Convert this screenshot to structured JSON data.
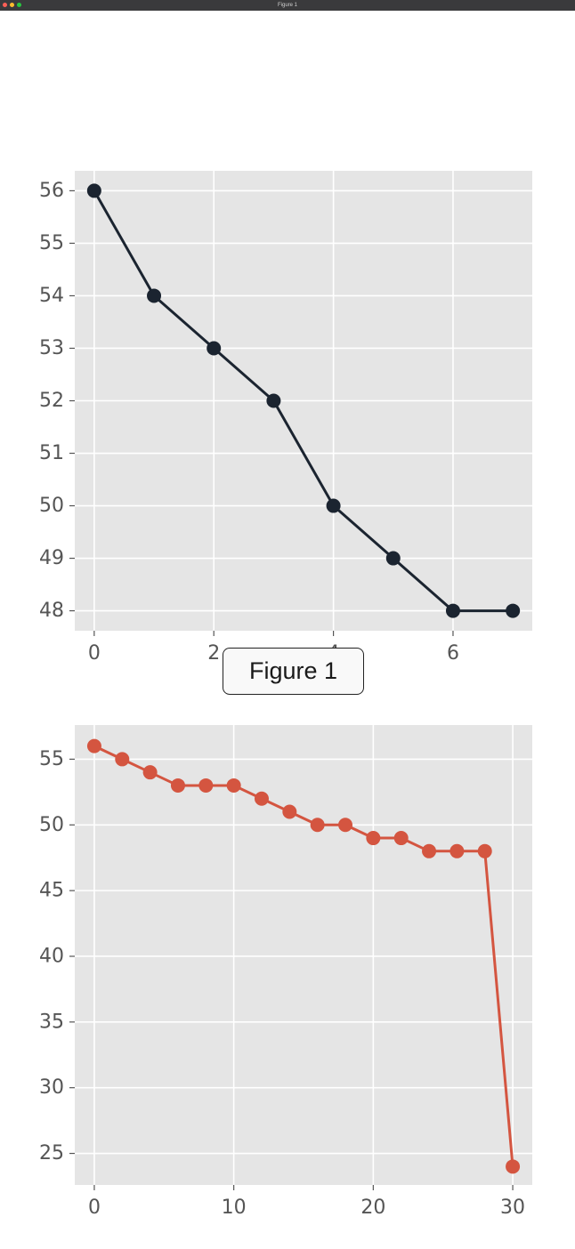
{
  "window": {
    "title": "Figure 1"
  },
  "overlay": {
    "label": "Figure 1"
  },
  "colors": {
    "plot_bg": "#e5e5e5",
    "grid": "#ffffff",
    "series_top": "#1b2430",
    "series_bottom": "#d45540",
    "tick_text": "#555555"
  },
  "chart_data": [
    {
      "type": "line",
      "x": [
        0,
        1,
        2,
        3,
        4,
        5,
        6,
        7
      ],
      "series": [
        {
          "values": [
            56,
            54,
            53,
            52,
            50,
            49,
            48,
            48
          ]
        }
      ],
      "xticks": [
        0,
        2,
        4,
        6
      ],
      "xtick_labels": [
        "0",
        "2",
        "4",
        "6"
      ],
      "yticks": [
        48,
        49,
        50,
        51,
        52,
        53,
        54,
        55,
        56
      ],
      "ytick_labels": [
        "48",
        "49",
        "50",
        "51",
        "52",
        "53",
        "54",
        "55",
        "56"
      ],
      "xlim": [
        -0.325,
        7.325
      ],
      "ylim": [
        47.62,
        56.38
      ],
      "grid": true,
      "title": "",
      "xlabel": "",
      "ylabel": ""
    },
    {
      "type": "line",
      "x": [
        0,
        2,
        4,
        6,
        8,
        10,
        12,
        14,
        16,
        18,
        20,
        22,
        24,
        26,
        28,
        30
      ],
      "series": [
        {
          "values": [
            56,
            55,
            54,
            53,
            53,
            53,
            52,
            51,
            50,
            50,
            49,
            49,
            48,
            48,
            48,
            24
          ]
        }
      ],
      "xticks": [
        0,
        10,
        20,
        30
      ],
      "xtick_labels": [
        "0",
        "10",
        "20",
        "30"
      ],
      "yticks": [
        25,
        30,
        35,
        40,
        45,
        50,
        55
      ],
      "ytick_labels": [
        "25",
        "30",
        "35",
        "40",
        "45",
        "50",
        "55"
      ],
      "xlim": [
        -1.4,
        31.4
      ],
      "ylim": [
        22.6,
        57.6
      ],
      "grid": true,
      "title": "",
      "xlabel": "",
      "ylabel": ""
    }
  ]
}
